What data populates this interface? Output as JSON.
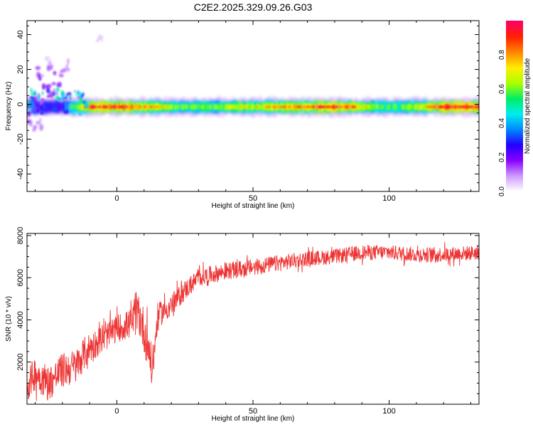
{
  "title": "C2E2.2025.329.09.26.G03",
  "colors": {
    "snr_line": "#ee3333",
    "spectro_ridge": "#ee2222",
    "frame": "#000000"
  },
  "chart_data": [
    {
      "type": "heatmap",
      "title": "C2E2.2025.329.09.26.G03",
      "xlabel": "Height of straight line (km)",
      "ylabel": "Frequency (Hz)",
      "xlim": [
        -33,
        133
      ],
      "ylim": [
        -50,
        48
      ],
      "xticks": [
        0,
        50,
        100
      ],
      "yticks": [
        -40,
        -20,
        0,
        20,
        40
      ],
      "colorbar": {
        "label": "Normalized spectral amplitude",
        "range": [
          0,
          1
        ],
        "ticks": [
          "0.0",
          "0.2",
          "0.4",
          "0.6",
          "0.8"
        ],
        "colormap": [
          "#ffffff",
          "#cc99ff",
          "#8800ff",
          "#2200ff",
          "#0088ff",
          "#00eeee",
          "#00ee66",
          "#aaff00",
          "#ffee00",
          "#ff8800",
          "#ff2200",
          "#ff0066"
        ]
      },
      "ridge": {
        "frequency_hz": -1.5,
        "core_x_range": [
          -12,
          133
        ],
        "description_points": [
          {
            "x": -30,
            "y": -2,
            "amp": 0.35
          },
          {
            "x": -20,
            "y": -1,
            "amp": 0.3
          },
          {
            "x": -10,
            "y": -1.5,
            "amp": 0.9
          },
          {
            "x": 0,
            "y": 0,
            "amp": 0.95
          },
          {
            "x": 10,
            "y": -1.5,
            "amp": 0.8
          },
          {
            "x": 25,
            "y": -1,
            "amp": 0.55
          },
          {
            "x": 50,
            "y": -1.5,
            "amp": 0.7
          },
          {
            "x": 80,
            "y": -1.5,
            "amp": 0.95
          },
          {
            "x": 95,
            "y": -2,
            "amp": 0.6
          },
          {
            "x": 105,
            "y": -1,
            "amp": 0.55
          },
          {
            "x": 120,
            "y": -1.5,
            "amp": 0.95
          }
        ]
      },
      "scatter_blobs": [
        {
          "x": -30,
          "y": 5,
          "amp": 0.25
        },
        {
          "x": -27,
          "y": 12,
          "amp": 0.2
        },
        {
          "x": -25,
          "y": 8,
          "amp": 0.2
        },
        {
          "x": -28,
          "y": 18,
          "amp": 0.12
        },
        {
          "x": -24,
          "y": 20,
          "amp": 0.15
        },
        {
          "x": -22,
          "y": 10,
          "amp": 0.15
        },
        {
          "x": -20,
          "y": 18,
          "amp": 0.1
        },
        {
          "x": -17,
          "y": 22,
          "amp": 0.1
        },
        {
          "x": -26,
          "y": 26,
          "amp": 0.06
        },
        {
          "x": -6,
          "y": 36,
          "amp": 0.05
        },
        {
          "x": -31,
          "y": -8,
          "amp": 0.15
        },
        {
          "x": -29,
          "y": -12,
          "amp": 0.08
        }
      ]
    },
    {
      "type": "line",
      "xlabel": "Height of straight line (km)",
      "ylabel": "SNR (10 * v/v)",
      "xlim": [
        -33,
        133
      ],
      "ylim": [
        0,
        8100
      ],
      "xticks": [
        0,
        50,
        100
      ],
      "yticks": [
        2000,
        4000,
        6000,
        8000
      ],
      "series": [
        {
          "x": [
            -33,
            -30,
            -25,
            -20,
            -15,
            -12,
            -10,
            -5,
            0,
            5,
            8,
            10,
            12,
            13,
            15,
            20,
            25,
            30,
            40,
            50,
            60,
            70,
            80,
            90,
            100,
            110,
            120,
            133
          ],
          "y": [
            800,
            1500,
            1000,
            1600,
            1800,
            2400,
            2700,
            3100,
            3600,
            3800,
            4300,
            3500,
            2500,
            1500,
            4200,
            4700,
            5400,
            6000,
            6300,
            6500,
            6700,
            6900,
            7000,
            7200,
            7200,
            7100,
            7100,
            7200
          ],
          "noise": [
            1200,
            1400,
            1400,
            1400,
            1400,
            1300,
            1200,
            1100,
            1100,
            1200,
            1600,
            1800,
            1900,
            1500,
            1000,
            900,
            800,
            700,
            700,
            650,
            650,
            600,
            600,
            600,
            600,
            600,
            600,
            600
          ]
        }
      ]
    }
  ]
}
